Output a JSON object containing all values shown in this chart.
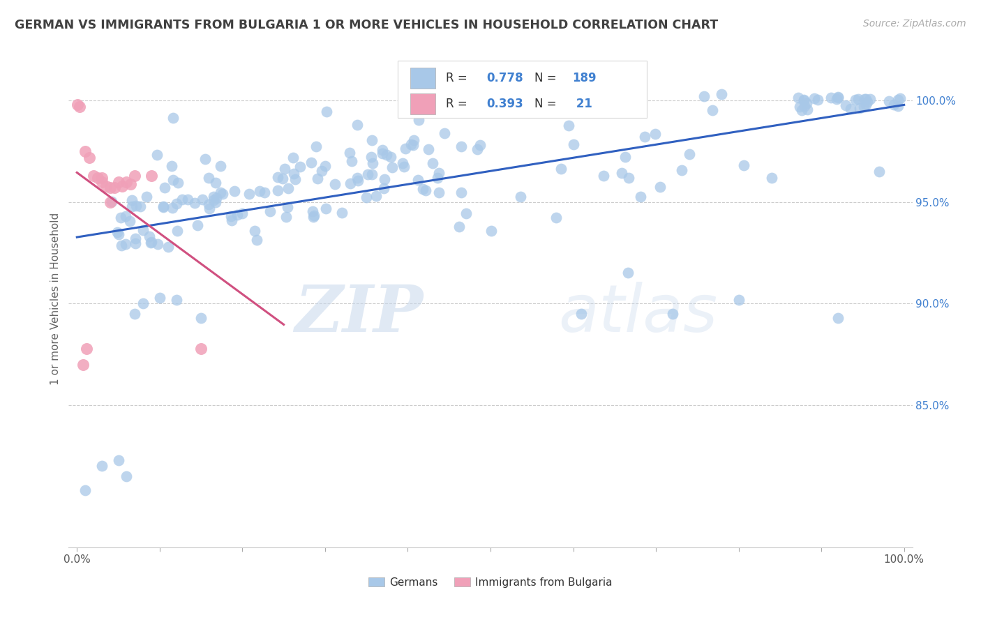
{
  "title": "GERMAN VS IMMIGRANTS FROM BULGARIA 1 OR MORE VEHICLES IN HOUSEHOLD CORRELATION CHART",
  "source": "Source: ZipAtlas.com",
  "ylabel": "1 or more Vehicles in Household",
  "xlim": [
    -0.01,
    1.01
  ],
  "ylim": [
    0.78,
    1.025
  ],
  "y_tick_labels": [
    "85.0%",
    "90.0%",
    "95.0%",
    "100.0%"
  ],
  "y_tick_values": [
    0.85,
    0.9,
    0.95,
    1.0
  ],
  "watermark_zip": "ZIP",
  "watermark_atlas": "atlas",
  "legend_german": "Germans",
  "legend_bulgaria": "Immigrants from Bulgaria",
  "R_german": "0.778",
  "N_german": "189",
  "R_bulgaria": "0.393",
  "N_bulgaria": " 21",
  "blue_scatter": "#a8c8e8",
  "pink_scatter": "#f0a0b8",
  "line_blue": "#3060c0",
  "line_pink": "#d05080",
  "title_color": "#404040",
  "axis_label_color": "#666666",
  "tick_color_right": "#4080d0",
  "legend_R_color": "#4080d0",
  "background_color": "#ffffff",
  "grid_color": "#cccccc",
  "x_tick_positions": [
    0.0,
    0.1,
    0.2,
    0.3,
    0.4,
    0.5,
    0.6,
    0.7,
    0.8,
    0.9,
    1.0
  ],
  "x_tick_labels_show": [
    "0.0%",
    "",
    "",
    "",
    "",
    "",
    "",
    "",
    "",
    "",
    "100.0%"
  ]
}
